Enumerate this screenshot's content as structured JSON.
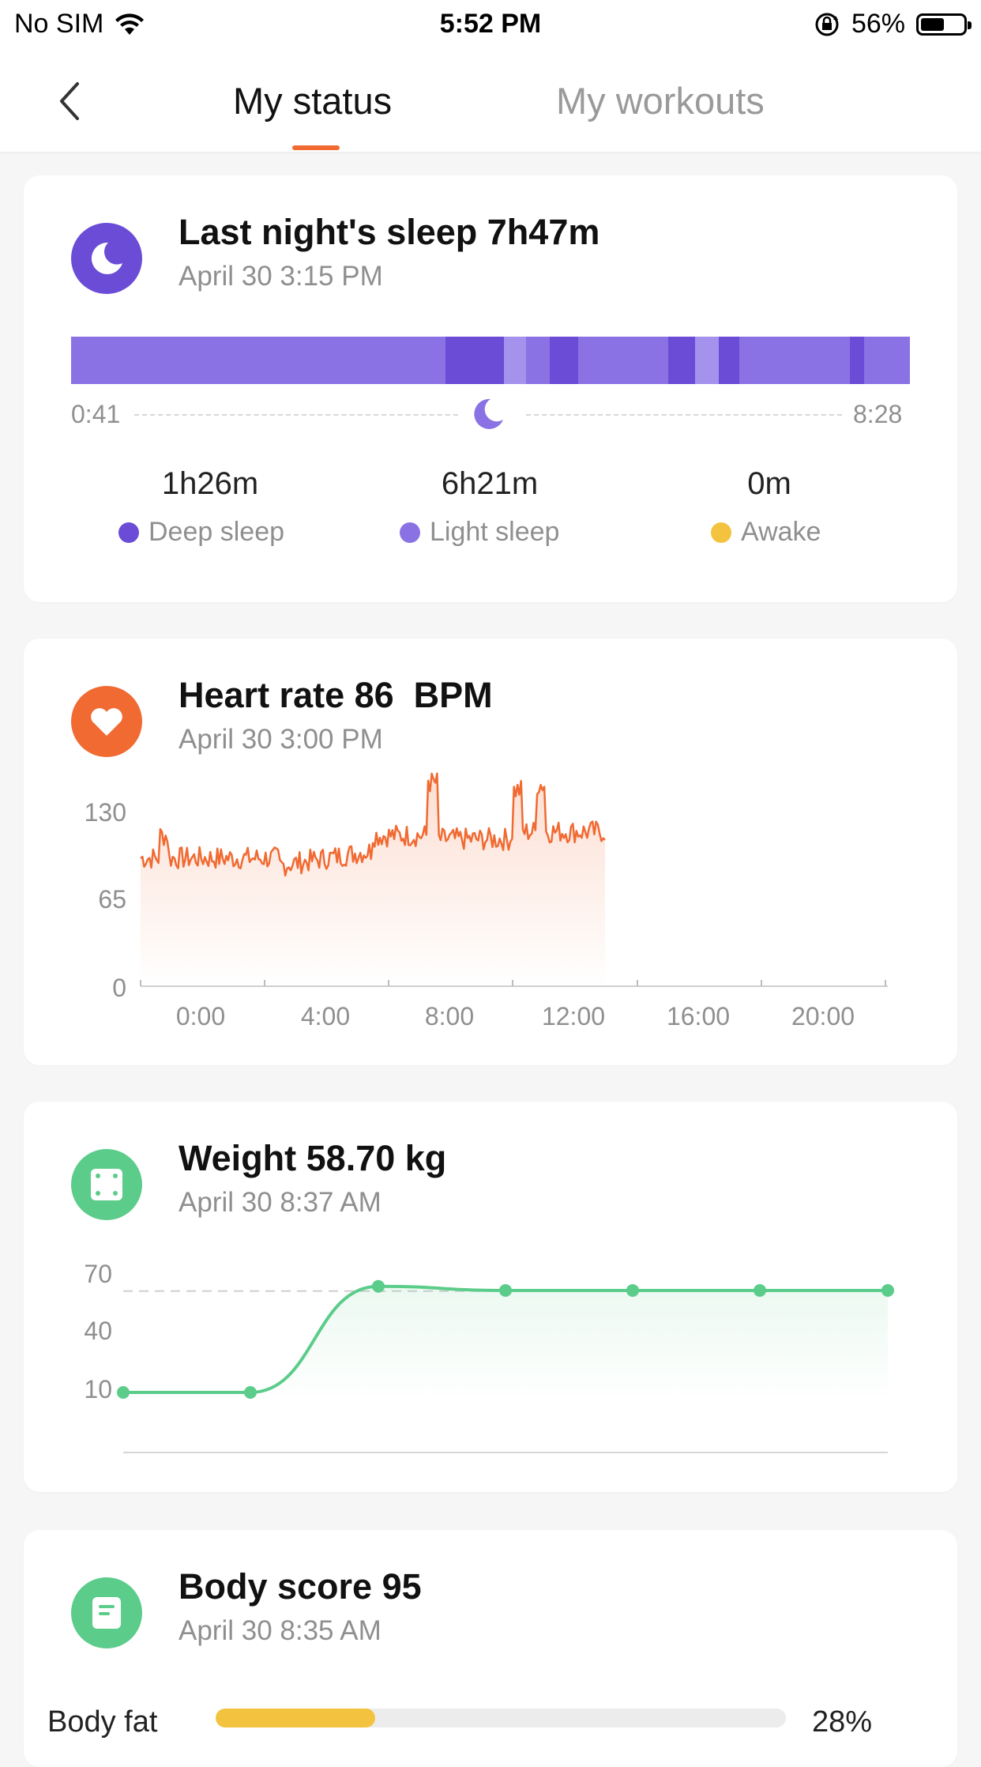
{
  "status_bar": {
    "carrier": "No SIM",
    "time": "5:52 PM",
    "battery": "56%",
    "battery_level": 0.56
  },
  "nav": {
    "tab_active": "My status",
    "tab_inactive": "My workouts"
  },
  "sleep": {
    "title": "Last night's sleep 7h47m",
    "date": "April 30 3:15 PM",
    "start_time": "0:41",
    "end_time": "8:28",
    "stats": [
      {
        "value": "1h26m",
        "label": "Deep sleep",
        "color": "#6a4cd6"
      },
      {
        "value": "6h21m",
        "label": "Light sleep",
        "color": "#8b72e4"
      },
      {
        "value": "0m",
        "label": "Awake",
        "color": "#f3c340"
      }
    ],
    "colors": {
      "deep": "#6a4cd6",
      "light": "#8b72e4",
      "lighter": "#a492ec",
      "icon_bg": "#6a4cd6"
    }
  },
  "heart": {
    "title": "Heart rate 86  BPM",
    "date": "April 30 3:00 PM",
    "color": "#f06a32",
    "chart_data": {
      "type": "line",
      "y_ticks": [
        "130",
        "65",
        "0"
      ],
      "x_ticks": [
        "0:00",
        "4:00",
        "8:00",
        "12:00",
        "16:00",
        "20:00"
      ],
      "ylim": [
        0,
        130
      ]
    }
  },
  "weight": {
    "title": "Weight 58.70 kg",
    "date": "April 30 8:37 AM",
    "color": "#5ccc8a",
    "chart_data": {
      "type": "line",
      "y_ticks": [
        "70",
        "40",
        "10"
      ],
      "ylim": [
        10,
        70
      ],
      "values": [
        10,
        10,
        61,
        59,
        59,
        59,
        59
      ],
      "reference_line": 58.7
    }
  },
  "body_score": {
    "title": "Body score 95",
    "date": "April 30 8:35 AM",
    "color": "#5ccc8a",
    "metric_label": "Body fat",
    "metric_value": "28%",
    "metric_fraction": 0.28
  }
}
